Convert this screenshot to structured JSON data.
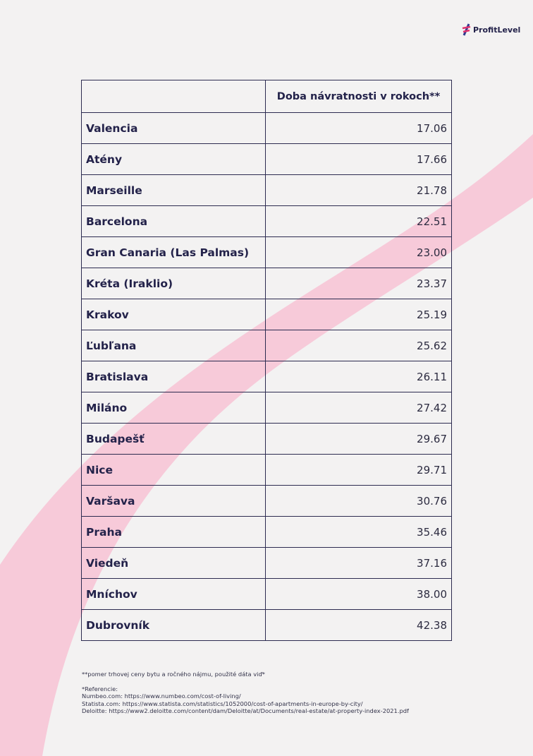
{
  "brand": {
    "name": "ProfitLevel",
    "accent": "#f6b7cc"
  },
  "table": {
    "header": [
      "",
      "Doba návratnosti v rokoch**"
    ],
    "rows": [
      {
        "city": "Valencia",
        "value": "17.06"
      },
      {
        "city": "Atény",
        "value": "17.66"
      },
      {
        "city": "Marseille",
        "value": "21.78"
      },
      {
        "city": "Barcelona",
        "value": "22.51"
      },
      {
        "city": "Gran Canaria (Las Palmas)",
        "value": "23.00"
      },
      {
        "city": "Kréta (Iraklio)",
        "value": "23.37"
      },
      {
        "city": "Krakov",
        "value": "25.19"
      },
      {
        "city": "Ľubľana",
        "value": "25.62"
      },
      {
        "city": "Bratislava",
        "value": "26.11"
      },
      {
        "city": "Miláno",
        "value": "27.42"
      },
      {
        "city": "Budapešť",
        "value": "29.67"
      },
      {
        "city": "Nice",
        "value": "29.71"
      },
      {
        "city": "Varšava",
        "value": "30.76"
      },
      {
        "city": "Praha",
        "value": "35.46"
      },
      {
        "city": "Viedeň",
        "value": "37.16"
      },
      {
        "city": "Mníchov",
        "value": "38.00"
      },
      {
        "city": "Dubrovník",
        "value": "42.38"
      }
    ]
  },
  "footnotes": {
    "note": "**pomer trhovej ceny bytu a ročného nájmu, použité dáta viď*",
    "references_title": "*Referencie:",
    "references": [
      "Numbeo.com: https://www.numbeo.com/cost-of-living/",
      "Statista.com: https://www.statista.com/statistics/1052000/cost-of-apartments-in-europe-by-city/",
      "Deloitte: https://www2.deloitte.com/content/dam/Deloitte/at/Documents/real-estate/at-property-index-2021.pdf"
    ]
  }
}
